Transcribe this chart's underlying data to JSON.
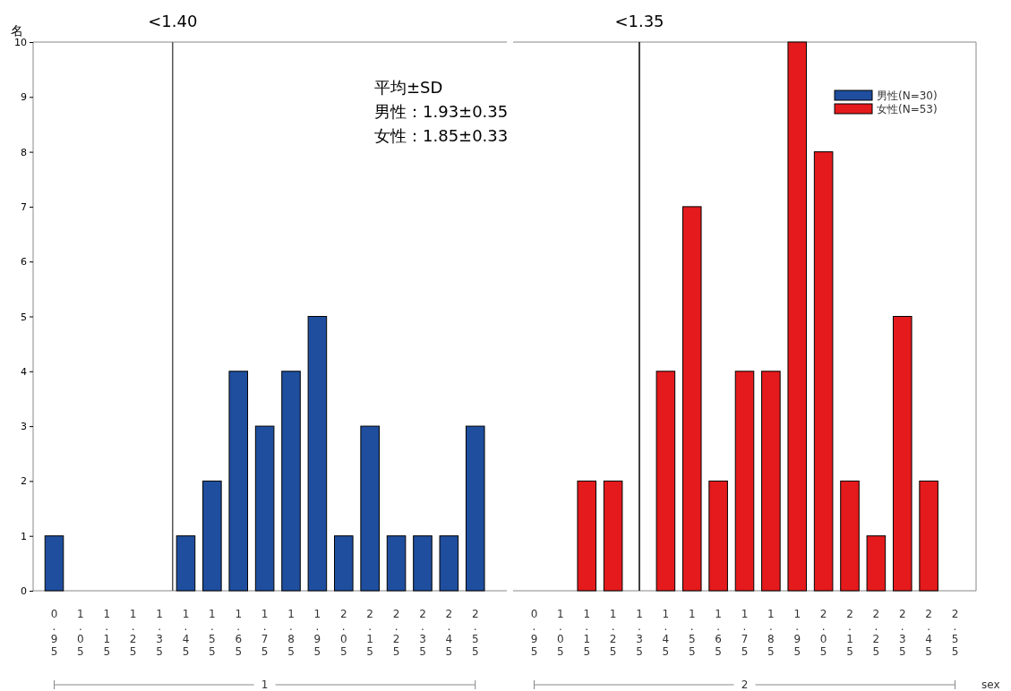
{
  "chart_data": [
    {
      "type": "bar",
      "xlabel": "1",
      "ylabel": "名",
      "x": [
        0.95,
        1.05,
        1.15,
        1.25,
        1.35,
        1.45,
        1.55,
        1.65,
        1.75,
        1.85,
        1.95,
        2.05,
        2.15,
        2.25,
        2.35,
        2.45,
        2.55
      ],
      "series": [
        {
          "name": "男性(N=30)",
          "color": "#1f4e9e",
          "values": [
            1,
            0,
            0,
            0,
            0,
            1,
            2,
            4,
            3,
            4,
            5,
            1,
            3,
            1,
            1,
            1,
            3
          ]
        }
      ],
      "xlim": [
        0.87,
        2.67
      ],
      "xticks": [
        {
          "value": 0.95,
          "label": "0.95"
        },
        {
          "value": 1.05,
          "label": "1.05"
        },
        {
          "value": 1.15,
          "label": "1.15"
        },
        {
          "value": 1.25,
          "label": "1.25"
        },
        {
          "value": 1.35,
          "label": "1.35"
        },
        {
          "value": 1.45,
          "label": "1.45"
        },
        {
          "value": 1.55,
          "label": "1.55"
        },
        {
          "value": 1.65,
          "label": "1.65"
        },
        {
          "value": 1.75,
          "label": "1.75"
        },
        {
          "value": 1.85,
          "label": "1.85"
        },
        {
          "value": 1.95,
          "label": "1.95"
        },
        {
          "value": 2.05,
          "label": "2.05"
        },
        {
          "value": 2.15,
          "label": "2.15"
        },
        {
          "value": 2.25,
          "label": "2.25"
        },
        {
          "value": 2.35,
          "label": "2.35"
        },
        {
          "value": 2.45,
          "label": "2.45"
        },
        {
          "value": 2.55,
          "label": "2.55"
        }
      ],
      "ylim": [
        0,
        10
      ],
      "yticks": [
        0,
        1,
        2,
        3,
        4,
        5,
        6,
        7,
        8,
        9,
        10
      ],
      "ref_lines": [
        {
          "axis": "x",
          "value": 1.4,
          "label": "<1.40",
          "color": "#555555"
        }
      ],
      "annotations": [
        "平均±SD",
        "男性：1.93±0.35",
        "女性：1.85±0.33"
      ],
      "legend": "top right",
      "grid": false
    },
    {
      "type": "bar",
      "xlabel": "2",
      "x": [
        0.95,
        1.05,
        1.15,
        1.25,
        1.35,
        1.45,
        1.55,
        1.65,
        1.75,
        1.85,
        1.95,
        2.05,
        2.15,
        2.25,
        2.35,
        2.45,
        2.55
      ],
      "series": [
        {
          "name": "女性(N=53)",
          "color": "#e41a1c",
          "values": [
            0,
            0,
            2,
            2,
            0,
            4,
            7,
            2,
            4,
            4,
            10,
            8,
            2,
            1,
            5,
            2,
            0
          ]
        }
      ],
      "xlim": [
        0.87,
        2.63
      ],
      "xticks": [
        {
          "value": 0.95,
          "label": "0.95"
        },
        {
          "value": 1.05,
          "label": "1.05"
        },
        {
          "value": 1.15,
          "label": "1.15"
        },
        {
          "value": 1.25,
          "label": "1.25"
        },
        {
          "value": 1.35,
          "label": "1.35"
        },
        {
          "value": 1.45,
          "label": "1.45"
        },
        {
          "value": 1.55,
          "label": "1.55"
        },
        {
          "value": 1.65,
          "label": "1.65"
        },
        {
          "value": 1.75,
          "label": "1.75"
        },
        {
          "value": 1.85,
          "label": "1.85"
        },
        {
          "value": 1.95,
          "label": "1.95"
        },
        {
          "value": 2.05,
          "label": "2.05"
        },
        {
          "value": 2.15,
          "label": "2.15"
        },
        {
          "value": 2.25,
          "label": "2.25"
        },
        {
          "value": 2.35,
          "label": "2.35"
        },
        {
          "value": 2.45,
          "label": "2.45"
        },
        {
          "value": 2.55,
          "label": "2.55"
        }
      ],
      "ylim": [
        0,
        10
      ],
      "tick_labels": "x",
      "ref_lines": [
        {
          "axis": "x",
          "value": 1.35,
          "label": "<1.35",
          "color": "#000000"
        }
      ],
      "annotations": [
        "sex"
      ],
      "legend": "top right",
      "grid": false
    }
  ]
}
